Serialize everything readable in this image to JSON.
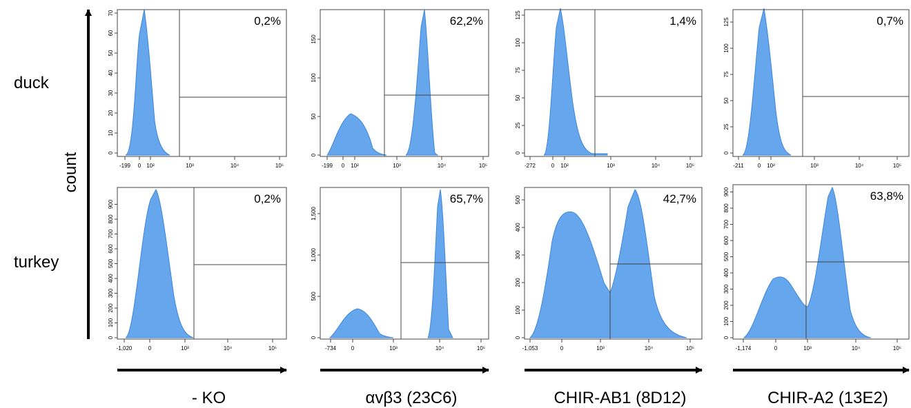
{
  "axis_label": "count",
  "rows": [
    "duck",
    "turkey"
  ],
  "columns": [
    "- KO",
    "αvβ3 (23C6)",
    "CHIR-AB1 (8D12)",
    "CHIR-A2 (13E2)"
  ],
  "panels": [
    [
      {
        "percent": "0,2%",
        "xticks": [
          "-199",
          "0",
          "10²",
          "10³",
          "10⁴",
          "10⁵"
        ],
        "yticks": [
          "0",
          "10",
          "20",
          "30",
          "40",
          "50",
          "60",
          "70"
        ]
      },
      {
        "percent": "62,2%",
        "xticks": [
          "-199",
          "0",
          "10²",
          "10³",
          "10⁴",
          "10⁵"
        ],
        "yticks": [
          "0",
          "50",
          "100",
          "150"
        ]
      },
      {
        "percent": "1,4%",
        "xticks": [
          "-272",
          "0",
          "10²",
          "10³",
          "10⁴",
          "10⁵"
        ],
        "yticks": [
          "0",
          "25",
          "50",
          "75",
          "100",
          "125"
        ]
      },
      {
        "percent": "0,7%",
        "xticks": [
          "-211",
          "0",
          "10²",
          "10³",
          "10⁴",
          "10⁵"
        ],
        "yticks": [
          "0",
          "25",
          "50",
          "75",
          "100",
          "125"
        ]
      }
    ],
    [
      {
        "percent": "0,2%",
        "xticks": [
          "-1,020",
          "0",
          "10³",
          "10⁴",
          "10⁵"
        ],
        "yticks": [
          "0",
          "100",
          "200",
          "300",
          "400",
          "500",
          "600",
          "700",
          "800",
          "900"
        ]
      },
      {
        "percent": "65,7%",
        "xticks": [
          "-734",
          "0",
          "10³",
          "10⁴",
          "10⁵"
        ],
        "yticks": [
          "0",
          "500",
          "1,000",
          "1,500"
        ]
      },
      {
        "percent": "42,7%",
        "xticks": [
          "-1,053",
          "0",
          "10³",
          "10⁴",
          "10⁵"
        ],
        "yticks": [
          "0",
          "100",
          "200",
          "300",
          "400",
          "500"
        ]
      },
      {
        "percent": "63,8%",
        "xticks": [
          "-1,174",
          "0",
          "10³",
          "10⁴",
          "10⁵"
        ],
        "yticks": [
          "0",
          "100",
          "200",
          "300",
          "400",
          "500",
          "600",
          "700",
          "800",
          "900"
        ]
      }
    ]
  ]
}
